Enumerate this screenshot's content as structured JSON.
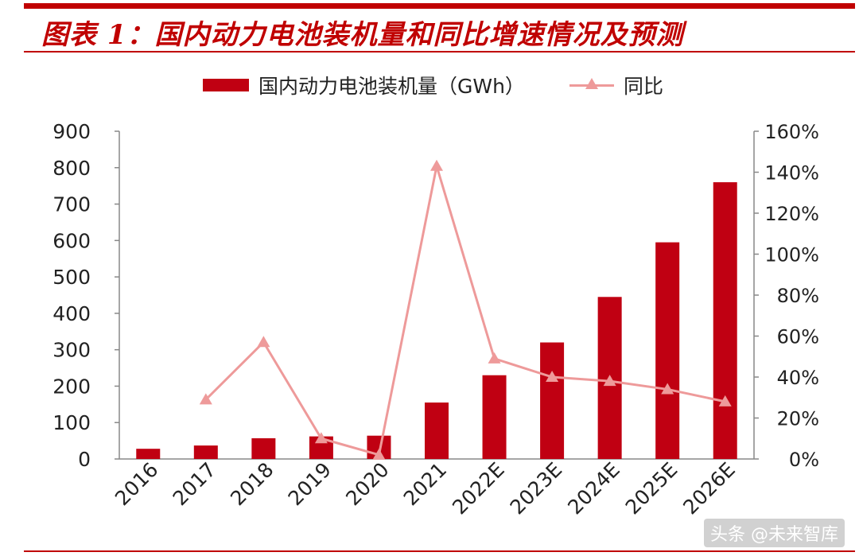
{
  "header": {
    "title": "图表 1：国内动力电池装机量和同比增速情况及预测"
  },
  "watermark": "头条 @未来智库",
  "colors": {
    "bar": "#c00012",
    "line": "#ee9a9a",
    "accent": "#c00000"
  },
  "chart_data": {
    "type": "bar",
    "categories": [
      "2016",
      "2017",
      "2018",
      "2019",
      "2020",
      "2021",
      "2022E",
      "2023E",
      "2024E",
      "2025E",
      "2026E"
    ],
    "series": [
      {
        "name": "国内动力电池装机量（GWh）",
        "type": "bar",
        "axis": "left",
        "values": [
          28,
          37,
          57,
          62,
          64,
          155,
          230,
          320,
          445,
          595,
          760
        ]
      },
      {
        "name": "同比",
        "type": "line",
        "axis": "right",
        "marker": "triangle",
        "values": [
          null,
          29,
          57,
          10,
          2,
          143,
          49,
          40,
          38,
          34,
          28
        ]
      }
    ],
    "ylim": [
      0,
      900
    ],
    "yticks": [
      0,
      100,
      200,
      300,
      400,
      500,
      600,
      700,
      800,
      900
    ],
    "y2lim": [
      0,
      160
    ],
    "y2ticks": [
      "0%",
      "20%",
      "40%",
      "60%",
      "80%",
      "100%",
      "120%",
      "140%",
      "160%"
    ],
    "grid": false,
    "legend_position": "top"
  }
}
